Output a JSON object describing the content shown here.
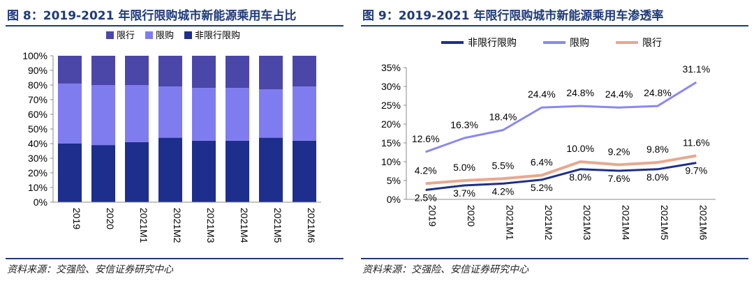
{
  "left": {
    "title": "图 8：2019-2021 年限行限购城市新能源乘用车占比",
    "source": "资料来源：交强险、安信证券研究中心"
  },
  "right": {
    "title": "图 9：2019-2021 年限行限购城市新能源乘用车渗透率",
    "source": "资料来源：交强险、安信证券研究中心"
  },
  "chart_data": [
    {
      "type": "bar",
      "stacked": true,
      "categories": [
        "2019",
        "2020",
        "2021M1",
        "2021M2",
        "2021M3",
        "2021M4",
        "2021M5",
        "2021M6"
      ],
      "series": [
        {
          "name": "非限行限购",
          "color": "#1d2e8c",
          "values": [
            40,
            39,
            41,
            44,
            42,
            42,
            44,
            42
          ]
        },
        {
          "name": "限购",
          "color": "#7f7cf0",
          "values": [
            41,
            41,
            39,
            35,
            36,
            36,
            33,
            37
          ]
        },
        {
          "name": "限行",
          "color": "#4b47a8",
          "values": [
            19,
            20,
            20,
            21,
            22,
            22,
            23,
            21
          ]
        }
      ],
      "legend": [
        "限行",
        "限购",
        "非限行限购"
      ],
      "yticks": [
        "0%",
        "10%",
        "20%",
        "30%",
        "40%",
        "50%",
        "60%",
        "70%",
        "80%",
        "90%",
        "100%"
      ],
      "ylim": [
        0,
        100
      ]
    },
    {
      "type": "line",
      "categories": [
        "2019",
        "2020",
        "2021M1",
        "2021M2",
        "2021M3",
        "2021M4",
        "2021M5",
        "2021M6"
      ],
      "series": [
        {
          "name": "非限行限购",
          "color": "#1d2e8c",
          "values": [
            2.5,
            3.7,
            4.2,
            5.2,
            8.0,
            7.6,
            8.0,
            9.7
          ],
          "labels": [
            "2.5%",
            "3.7%",
            "4.2%",
            "5.2%",
            "8.0%",
            "7.6%",
            "8.0%",
            "9.7%"
          ]
        },
        {
          "name": "限购",
          "color": "#8a88f2",
          "values": [
            12.6,
            16.3,
            18.4,
            24.4,
            24.8,
            24.4,
            24.8,
            31.1
          ],
          "labels": [
            "12.6%",
            "16.3%",
            "18.4%",
            "24.4%",
            "24.8%",
            "24.4%",
            "24.8%",
            "31.1%"
          ]
        },
        {
          "name": "限行",
          "color": "#e8a88e",
          "values": [
            4.2,
            5.0,
            5.5,
            6.4,
            10.0,
            9.2,
            9.8,
            11.6
          ],
          "labels": [
            "4.2%",
            "5.0%",
            "5.5%",
            "6.4%",
            "10.0%",
            "9.2%",
            "9.8%",
            "11.6%"
          ]
        }
      ],
      "legend": [
        "非限行限购",
        "限购",
        "限行"
      ],
      "yticks": [
        "0%",
        "5%",
        "10%",
        "15%",
        "20%",
        "25%",
        "30%",
        "35%"
      ],
      "ylim": [
        0,
        35
      ]
    }
  ]
}
